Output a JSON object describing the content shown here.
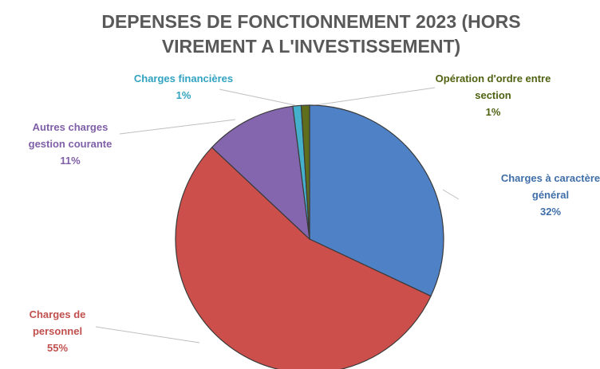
{
  "chart_data": {
    "type": "pie",
    "title": "DEPENSES DE FONCTIONNEMENT 2023 (HORS VIREMENT A L'INVESTISSEMENT)",
    "categories": [
      "Charges à caractère général",
      "Charges de personnel",
      "Autres charges gestion courante",
      "Charges financières",
      "Opération d'ordre entre section"
    ],
    "values": [
      32,
      55,
      11,
      1,
      1
    ],
    "value_labels": [
      "32%",
      "55%",
      "11%",
      "1%",
      "1%"
    ],
    "colors": [
      "#4f81c7",
      "#cd4f4b",
      "#8366ae",
      "#44b0cc",
      "#5e6e1c"
    ],
    "label_colors": [
      "#3f6ea8",
      "#c0504d",
      "#7f5fa8",
      "#31a3c0",
      "#4f6212"
    ]
  }
}
